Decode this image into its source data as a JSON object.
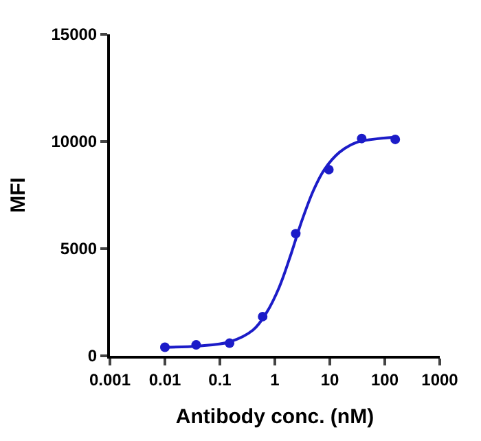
{
  "chart_data": {
    "type": "scatter",
    "xlabel": "Antibody conc. (nM)",
    "ylabel": "MFI",
    "log": "x",
    "xlim": [
      0.001,
      1000
    ],
    "xticks": [
      {
        "value": 0.001,
        "label": "0.001"
      },
      {
        "value": 0.01,
        "label": "0.01"
      },
      {
        "value": 0.1,
        "label": "0.1"
      },
      1,
      10,
      100,
      1000
    ],
    "ylim": [
      0,
      15000
    ],
    "yticks": [
      0,
      5000,
      10000,
      15000
    ],
    "series": [
      {
        "marker": "circle",
        "color": "#1c1cc8",
        "x": [
          0.01,
          0.037,
          0.15,
          0.6,
          2.4,
          9.6,
          38,
          155
        ],
        "values": [
          400,
          510,
          590,
          1830,
          5700,
          8690,
          10140,
          10100
        ]
      },
      {
        "type": "line",
        "marker": "none",
        "color": "#1c1cc8",
        "line_style": "solid",
        "x": [
          0.01,
          0.04,
          0.15,
          0.4,
          0.7,
          1.2,
          2,
          3,
          5,
          8,
          15,
          30,
          60,
          155
        ],
        "values": [
          400,
          460,
          650,
          1200,
          2000,
          3200,
          4800,
          6200,
          7700,
          8700,
          9500,
          9950,
          10100,
          10200
        ]
      }
    ]
  }
}
